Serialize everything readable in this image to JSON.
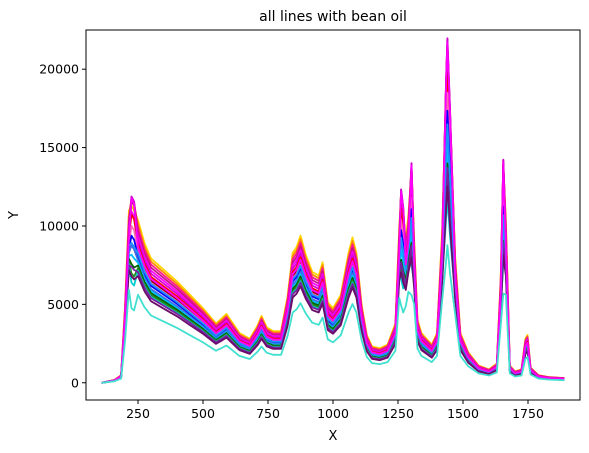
{
  "chart_data": {
    "type": "line",
    "title": "all lines with bean oil",
    "xlabel": "X",
    "ylabel": "Y",
    "xlim": [
      50,
      1950
    ],
    "ylim": [
      -1100,
      22500
    ],
    "xticks": [
      250,
      500,
      750,
      1000,
      1250,
      1500,
      1750
    ],
    "yticks": [
      0,
      5000,
      10000,
      15000,
      20000
    ],
    "grid": false,
    "legend": "none",
    "base_profile": [
      [
        110,
        0
      ],
      [
        160,
        150
      ],
      [
        185,
        400
      ],
      [
        200,
        4000
      ],
      [
        215,
        9000
      ],
      [
        225,
        10600
      ],
      [
        235,
        10300
      ],
      [
        250,
        8500
      ],
      [
        275,
        7300
      ],
      [
        300,
        6500
      ],
      [
        350,
        5900
      ],
      [
        400,
        5300
      ],
      [
        450,
        4600
      ],
      [
        500,
        3900
      ],
      [
        550,
        3100
      ],
      [
        575,
        3400
      ],
      [
        590,
        3600
      ],
      [
        610,
        3200
      ],
      [
        640,
        2600
      ],
      [
        680,
        2300
      ],
      [
        710,
        3000
      ],
      [
        725,
        3500
      ],
      [
        745,
        2900
      ],
      [
        770,
        2700
      ],
      [
        800,
        2700
      ],
      [
        825,
        4500
      ],
      [
        845,
        6800
      ],
      [
        860,
        7100
      ],
      [
        875,
        7700
      ],
      [
        895,
        6700
      ],
      [
        920,
        5800
      ],
      [
        945,
        5600
      ],
      [
        960,
        6300
      ],
      [
        980,
        4200
      ],
      [
        1000,
        3900
      ],
      [
        1030,
        4600
      ],
      [
        1060,
        6800
      ],
      [
        1075,
        7600
      ],
      [
        1090,
        6800
      ],
      [
        1110,
        4100
      ],
      [
        1130,
        2500
      ],
      [
        1150,
        1900
      ],
      [
        1180,
        1800
      ],
      [
        1210,
        2000
      ],
      [
        1240,
        3100
      ],
      [
        1255,
        8200
      ],
      [
        1262,
        11000
      ],
      [
        1270,
        10000
      ],
      [
        1280,
        7400
      ],
      [
        1290,
        8800
      ],
      [
        1302,
        12500
      ],
      [
        1312,
        7600
      ],
      [
        1325,
        3300
      ],
      [
        1340,
        2600
      ],
      [
        1360,
        2300
      ],
      [
        1380,
        2000
      ],
      [
        1400,
        2600
      ],
      [
        1420,
        8000
      ],
      [
        1435,
        17300
      ],
      [
        1440,
        19600
      ],
      [
        1450,
        15600
      ],
      [
        1470,
        6600
      ],
      [
        1490,
        2600
      ],
      [
        1520,
        1600
      ],
      [
        1560,
        900
      ],
      [
        1600,
        700
      ],
      [
        1630,
        1000
      ],
      [
        1645,
        5500
      ],
      [
        1655,
        12700
      ],
      [
        1665,
        8500
      ],
      [
        1680,
        900
      ],
      [
        1700,
        600
      ],
      [
        1725,
        700
      ],
      [
        1740,
        2300
      ],
      [
        1748,
        2500
      ],
      [
        1760,
        800
      ],
      [
        1790,
        400
      ],
      [
        1830,
        300
      ],
      [
        1890,
        250
      ]
    ],
    "series": [
      {
        "color": "#ffd700",
        "scale": 1.22,
        "peak_scale": 1.0
      },
      {
        "color": "#ff8c00",
        "scale": 1.19,
        "peak_scale": 1.05
      },
      {
        "color": "#ff1493",
        "scale": 1.16,
        "peak_scale": 1.05
      },
      {
        "color": "#c71585",
        "scale": 1.13,
        "peak_scale": 1.08
      },
      {
        "color": "#ff00ff",
        "scale": 1.1,
        "peak_scale": 1.0
      },
      {
        "color": "#d400d4",
        "scale": 1.07,
        "peak_scale": 1.1
      },
      {
        "color": "#ff0000",
        "scale": 1.04,
        "peak_scale": 1.0
      },
      {
        "color": "#8b0000",
        "scale": 1.0,
        "peak_scale": 1.1
      },
      {
        "color": "#ff69b4",
        "scale": 0.98,
        "peak_scale": 0.95
      },
      {
        "color": "#0000ff",
        "scale": 0.95,
        "peak_scale": 0.9
      },
      {
        "color": "#4169e1",
        "scale": 0.92,
        "peak_scale": 0.85
      },
      {
        "color": "#00bfff",
        "scale": 0.9,
        "peak_scale": 0.8
      },
      {
        "color": "#006400",
        "scale": 0.88,
        "peak_scale": 0.75
      },
      {
        "color": "#228b22",
        "scale": 0.86,
        "peak_scale": 0.7
      },
      {
        "color": "#00ced1",
        "scale": 0.84,
        "peak_scale": 0.65
      },
      {
        "color": "#7b1fa2",
        "scale": 0.83,
        "peak_scale": 0.75
      },
      {
        "color": "#6a0d6a",
        "scale": 0.8,
        "peak_scale": 0.7
      },
      {
        "color": "#1e90ff",
        "scale": 0.97,
        "peak_scale": 0.85
      },
      {
        "color": "#ff00ff",
        "scale": 1.02,
        "peak_scale": 1.1
      },
      {
        "color": "#40e0d0",
        "scale": 0.66,
        "peak_scale": 0.55
      }
    ]
  }
}
